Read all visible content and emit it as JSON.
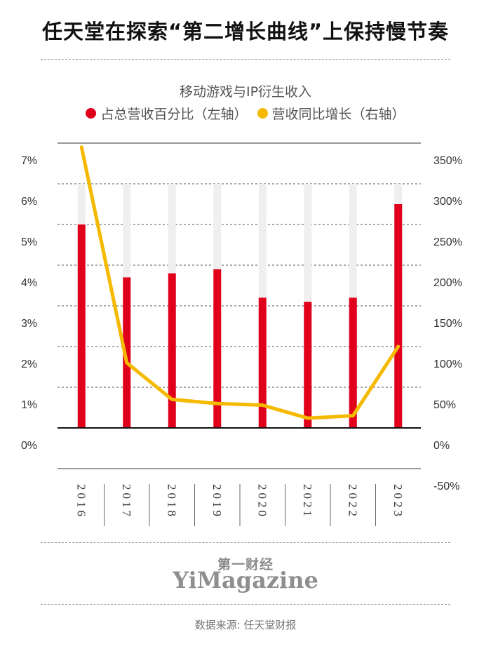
{
  "header": {
    "title": "任天堂在探索“第二增长曲线”上保持慢节奏"
  },
  "chart_data": {
    "type": "bar",
    "title": "移动游戏与IP衍生收入",
    "categories": [
      "2016",
      "2017",
      "2018",
      "2019",
      "2020",
      "2021",
      "2022",
      "2023"
    ],
    "series": [
      {
        "name": "占总营收百分比（左轴）",
        "type": "bar",
        "axis": "left",
        "color": "#e0001b",
        "values": [
          5.0,
          3.7,
          3.8,
          3.9,
          3.2,
          3.1,
          3.2,
          5.5
        ]
      },
      {
        "name": "营收同比增长（右轴）",
        "type": "line",
        "axis": "right",
        "color": "#f5b900",
        "values": [
          345,
          80,
          35,
          30,
          28,
          12,
          15,
          100
        ]
      }
    ],
    "left_axis": {
      "ticks": [
        "0%",
        "1%",
        "2%",
        "3%",
        "4%",
        "5%",
        "6%",
        "7%"
      ],
      "range": [
        0,
        7
      ]
    },
    "right_axis": {
      "ticks": [
        "-50%",
        "0%",
        "50%",
        "100%",
        "150%",
        "200%",
        "250%",
        "300%",
        "350%"
      ],
      "range": [
        -50,
        350
      ]
    },
    "bar_background_max": 6,
    "grid": true,
    "legend_position": "top"
  },
  "branding": {
    "logo_cn": "第一财经",
    "logo_en": "YiMagazine"
  },
  "footer": {
    "source": "数据来源: 任天堂财报"
  }
}
